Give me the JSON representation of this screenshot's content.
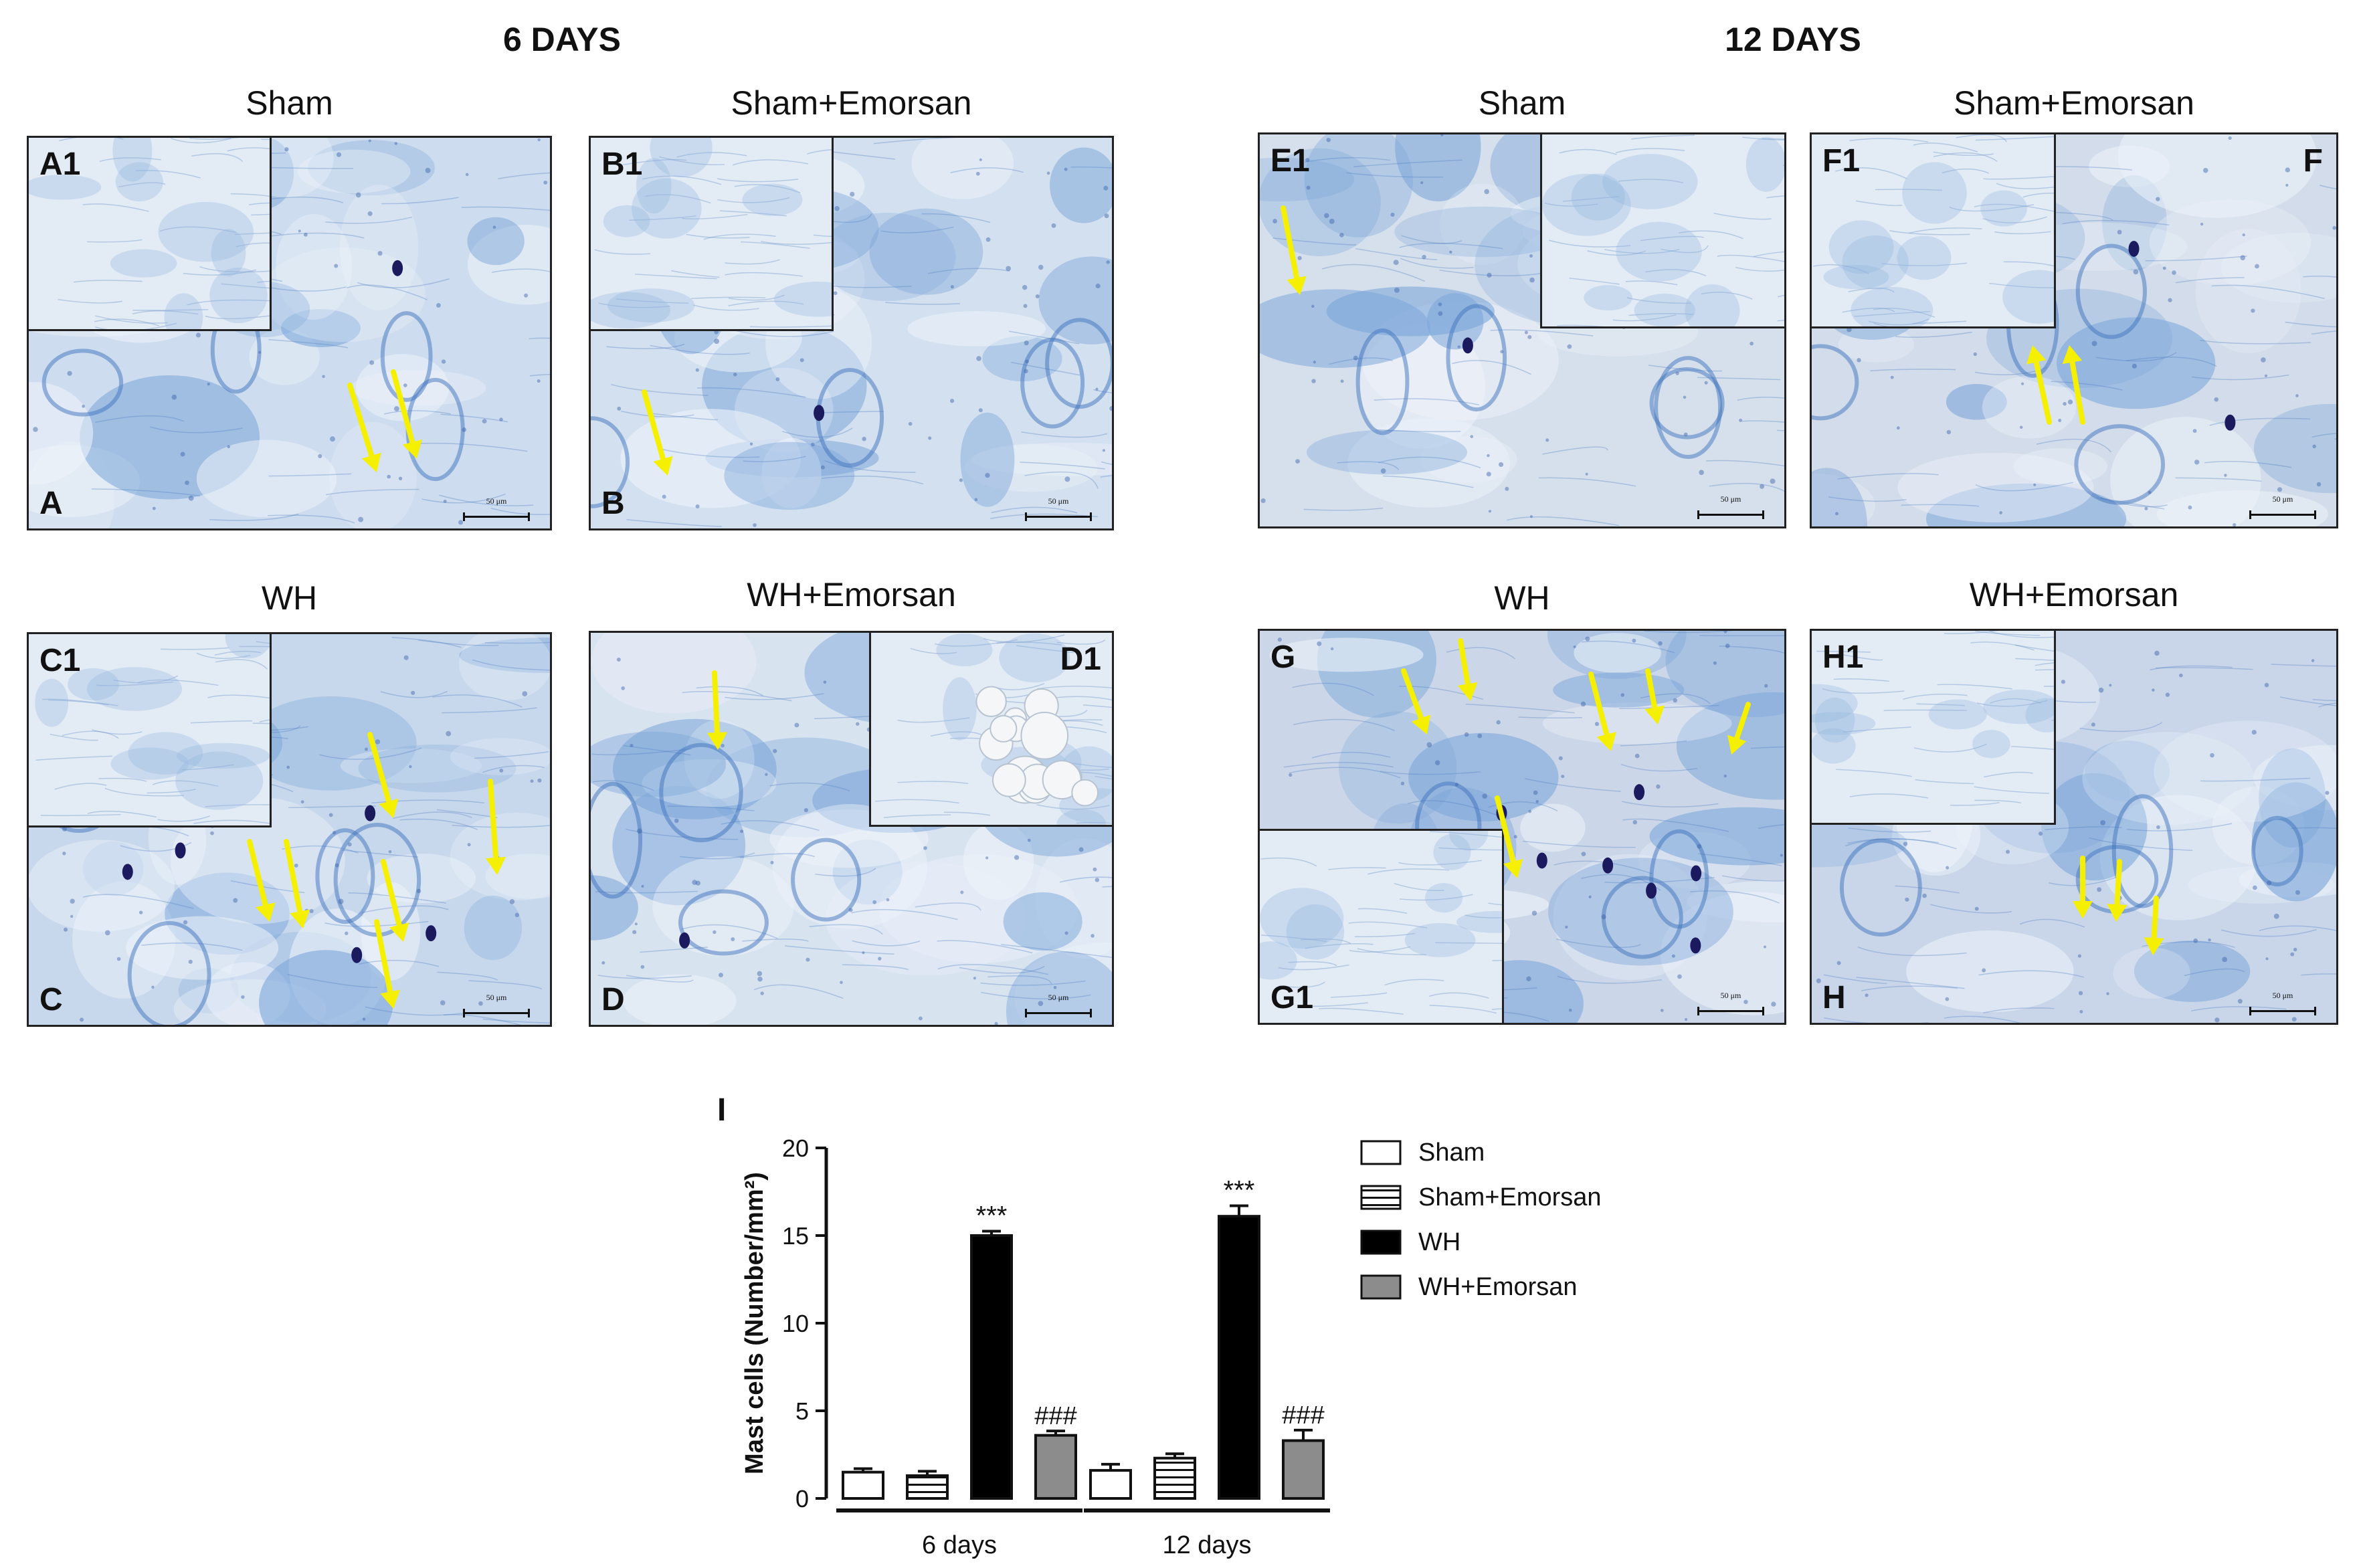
{
  "headings": {
    "left": "6 DAYS",
    "right": "12 DAYS"
  },
  "panels": [
    {
      "id": "A",
      "title": "Sham",
      "label": "A",
      "inset_label": "A1",
      "scale": "50 μm",
      "tone": "#cddcee",
      "mast_cells": 2
    },
    {
      "id": "B",
      "title": "Sham+Emorsan",
      "label": "B",
      "inset_label": "B1",
      "scale": "50 μm",
      "tone": "#d3e0ef",
      "mast_cells": 1
    },
    {
      "id": "C",
      "title": "WH",
      "label": "C",
      "inset_label": "C1",
      "scale": "50 μm",
      "tone": "#c8d8ec",
      "mast_cells": 7
    },
    {
      "id": "D",
      "title": "WH+Emorsan",
      "label": "D",
      "inset_label": "D1",
      "scale": "50 μm",
      "tone": "#d8e3f0",
      "mast_cells": 1
    },
    {
      "id": "E",
      "title": "Sham",
      "label": "E",
      "inset_label": "E1",
      "scale": "50 μm",
      "tone": "#d6e0ec",
      "mast_cells": 1
    },
    {
      "id": "F",
      "title": "Sham+Emorsan",
      "label": "F",
      "inset_label": "F1",
      "scale": "50 μm",
      "tone": "#d2dcea",
      "mast_cells": 2
    },
    {
      "id": "G",
      "title": "WH",
      "label": "G",
      "inset_label": "G1",
      "scale": "50 μm",
      "tone": "#cbd7e9",
      "mast_cells": 7
    },
    {
      "id": "H",
      "title": "WH+Emorsan",
      "label": "H",
      "inset_label": "H1",
      "scale": "50 μm",
      "tone": "#c9d6ea",
      "mast_cells": 3
    }
  ],
  "colors": {
    "arrow": "#f5f000",
    "stain_mast_cell": "#1c1a5e",
    "tissue_blue": "#5b8fd0"
  },
  "chart_data": {
    "type": "bar",
    "panel_label": "I",
    "ylabel": "Mast cells (Number/mm²)",
    "ylim": [
      0,
      20
    ],
    "yticks": [
      0,
      5,
      10,
      15,
      20
    ],
    "groups": [
      "6 days",
      "12 days"
    ],
    "series": [
      {
        "name": "Sham",
        "values": [
          1.5,
          1.6
        ],
        "errors": [
          0.2,
          0.35
        ],
        "fill": "white",
        "annotations": [
          "",
          ""
        ]
      },
      {
        "name": "Sham+Emorsan",
        "values": [
          1.3,
          2.3
        ],
        "errors": [
          0.25,
          0.25
        ],
        "fill": "hatched",
        "annotations": [
          "",
          ""
        ]
      },
      {
        "name": "WH",
        "values": [
          15.0,
          16.1
        ],
        "errors": [
          0.25,
          0.6
        ],
        "fill": "black",
        "annotations": [
          "***",
          "***"
        ]
      },
      {
        "name": "WH+Emorsan",
        "values": [
          3.6,
          3.3
        ],
        "errors": [
          0.25,
          0.6
        ],
        "fill": "gray",
        "annotations": [
          "###",
          "###"
        ]
      }
    ]
  }
}
